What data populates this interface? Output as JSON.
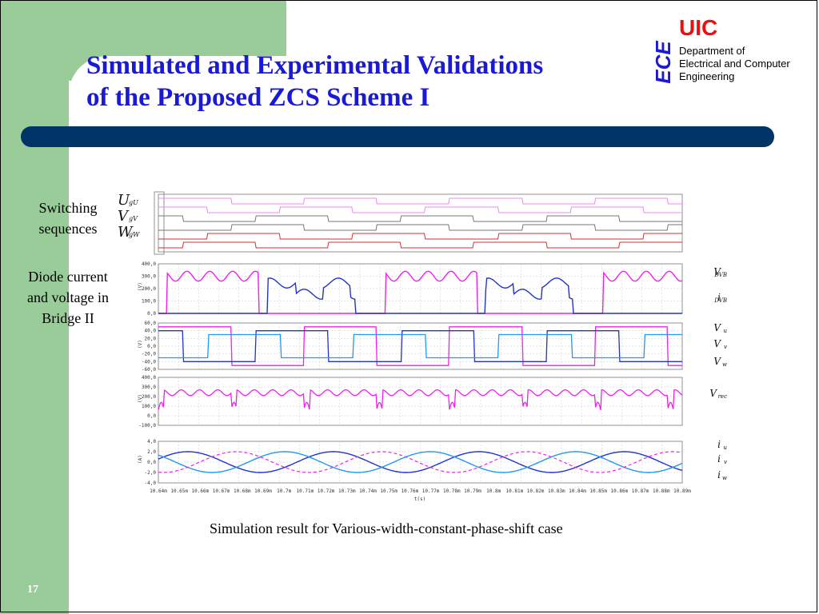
{
  "slide": {
    "title_line1": "Simulated and Experimental Validations",
    "title_line2": "of the Proposed ZCS Scheme I",
    "page_number": "17",
    "caption": "Simulation result for Various-width-constant-phase-shift case"
  },
  "logo": {
    "uic": "UIC",
    "ece": "ECE",
    "dept_line1": "Department of",
    "dept_line2": "Electrical and Computer",
    "dept_line3": "Engineering"
  },
  "labels": {
    "switching_line1": "Switching",
    "switching_line2": "sequences",
    "diode_line1": "Diode current",
    "diode_line2": "and voltage in",
    "diode_line3": "Bridge II"
  },
  "colors": {
    "title": "#1a1ad6",
    "green": "#99cc99",
    "navy": "#003366",
    "uic_red": "#e81010",
    "trace_blue": "#2233cc",
    "trace_magenta": "#ee22ee",
    "trace_cyan": "#2299ee"
  },
  "chart_data": {
    "type": "line",
    "xlabel": "t(s)",
    "x_ticks": [
      "10.64m",
      "10.65m",
      "10.66m",
      "10.67m",
      "10.68m",
      "10.69m",
      "10.7m",
      "10.71m",
      "10.72m",
      "10.73m",
      "10.74m",
      "10.75m",
      "10.76m",
      "10.77m",
      "10.78m",
      "10.79m",
      "10.8m",
      "10.81m",
      "10.82m",
      "10.83m",
      "10.84m",
      "10.85m",
      "10.86m",
      "10.87m",
      "10.88m",
      "10.89m"
    ],
    "panels": [
      {
        "name": "switching",
        "signals": [
          {
            "letter": "U",
            "sub": "gU"
          },
          {
            "letter": "V",
            "sub": "gV"
          },
          {
            "letter": "W",
            "sub": "gW"
          }
        ]
      },
      {
        "name": "diode",
        "ylabel": "(V)",
        "y_ticks": [
          "400,0",
          "300,0",
          "200,0",
          "100,0",
          "0,0"
        ],
        "legend": [
          {
            "main": "V",
            "sub": "DVB"
          },
          {
            "main": "i",
            "sub": "DVB"
          }
        ]
      },
      {
        "name": "phase_voltage",
        "ylabel": "(V)",
        "y_ticks": [
          "60,0",
          "40,0",
          "20,0",
          "0,0",
          "-20,0",
          "-40,0",
          "-60,0"
        ],
        "legend": [
          {
            "main": "V",
            "sub": "u"
          },
          {
            "main": "V",
            "sub": "v"
          },
          {
            "main": "V",
            "sub": "w"
          }
        ]
      },
      {
        "name": "rectified",
        "ylabel": "(V)",
        "y_ticks": [
          "400,0",
          "300,0",
          "200,0",
          "100,0",
          "0,0",
          "-100,0"
        ],
        "legend": [
          {
            "main": "V",
            "sub": "rec"
          }
        ]
      },
      {
        "name": "currents",
        "ylabel": "(A)",
        "y_ticks": [
          "4,0",
          "2,0",
          "0,0",
          "-2,0",
          "-4,0"
        ],
        "legend": [
          {
            "main": "i",
            "sub": "u"
          },
          {
            "main": "i",
            "sub": "v"
          },
          {
            "main": "i",
            "sub": "w"
          }
        ]
      }
    ]
  }
}
